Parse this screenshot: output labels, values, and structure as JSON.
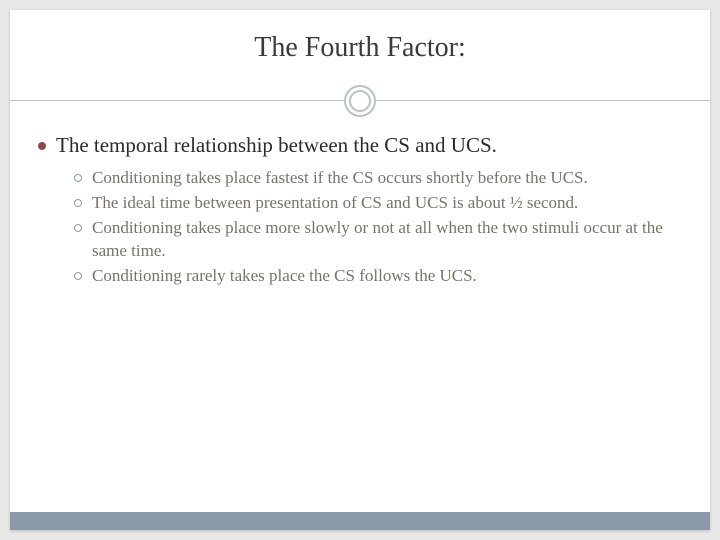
{
  "slide": {
    "title": "The Fourth Factor:",
    "title_fontsize": 28,
    "title_color": "#3a3a3a",
    "background_color": "#ffffff",
    "outer_background": "#e8e8e8",
    "divider": {
      "line_color": "#b8c0c8",
      "circle_border_color": "#b8c0c8"
    },
    "main_bullet": {
      "marker_color": "#8b4a4a",
      "text_color": "#2a2a2a",
      "fontsize": 21,
      "text": "The temporal relationship between the CS and UCS."
    },
    "sub_bullets": {
      "marker_border_color": "#8a9aa8",
      "text_color": "#7a7268",
      "fontsize": 17,
      "items": [
        "Conditioning takes place fastest if the CS occurs shortly before the UCS.",
        "The ideal time between presentation of CS and UCS is about ½ second.",
        "Conditioning takes place more slowly or not at all when the two stimuli occur at the same time.",
        "Conditioning rarely takes place the CS follows the UCS."
      ]
    },
    "footer_bar_color": "#8a9aa8"
  }
}
